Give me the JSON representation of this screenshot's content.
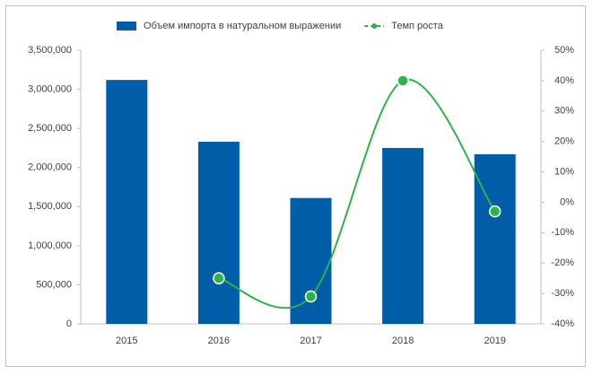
{
  "chart_data": {
    "type": "bar",
    "categories": [
      "2015",
      "2016",
      "2017",
      "2018",
      "2019"
    ],
    "series": [
      {
        "name": "Объем импорта в натуральном выражении",
        "type": "bar",
        "color": "#005ea8",
        "values": [
          3120000,
          2330000,
          1610000,
          2250000,
          2170000
        ]
      },
      {
        "name": "Темп роста",
        "type": "line",
        "axis": "y2",
        "color": "#2db34a",
        "values": [
          null,
          -25,
          -31,
          40,
          -3
        ]
      }
    ],
    "ylim": [
      0,
      3500000
    ],
    "yticks": [
      0,
      {
        "value": 500000,
        "label": "500,000"
      },
      {
        "value": 1000000,
        "label": "1,000,000"
      },
      {
        "value": 1500000,
        "label": "1,500,000"
      },
      {
        "value": 2000000,
        "label": "2,000,000"
      },
      {
        "value": 2500000,
        "label": "2,500,000"
      },
      {
        "value": 3000000,
        "label": "3,000,000"
      },
      {
        "value": 3500000,
        "label": "3,500,000"
      }
    ],
    "y2lim": [
      -40,
      50
    ],
    "y2ticks": [
      {
        "value": -40,
        "label": "-40%"
      },
      {
        "value": -30,
        "label": "-30%"
      },
      {
        "value": -20,
        "label": "-20%"
      },
      {
        "value": -10,
        "label": "-10%"
      },
      {
        "value": 0,
        "label": "0%"
      },
      {
        "value": 10,
        "label": "10%"
      },
      {
        "value": 20,
        "label": "20%"
      },
      {
        "value": 30,
        "label": "30%"
      },
      {
        "value": 40,
        "label": "40%"
      },
      {
        "value": 50,
        "label": "50%"
      }
    ],
    "grid": false,
    "legend": "top"
  }
}
